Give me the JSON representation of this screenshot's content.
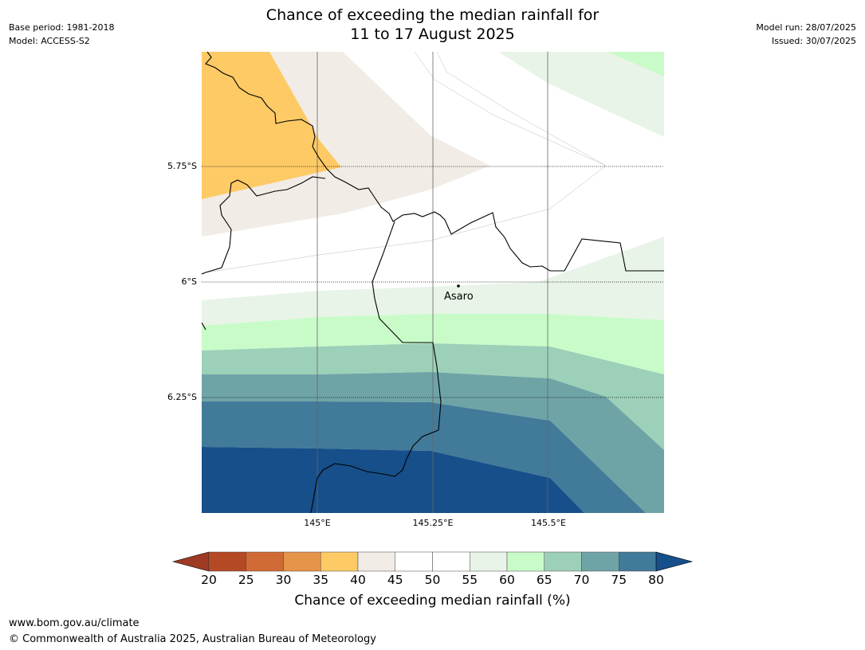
{
  "header": {
    "title_line1": "Chance of exceeding the median rainfall for",
    "title_line2": "11 to 17 August 2025",
    "base_period": "Base period: 1981-2018",
    "model": "Model: ACCESS-S2",
    "model_run": "Model run: 28/07/2025",
    "issued": "Issued: 30/07/2025"
  },
  "map": {
    "latitude_labels": [
      "5.75°S",
      "6°S",
      "6.25°S"
    ],
    "longitude_labels": [
      "145°E",
      "145.25°E",
      "145.5°E"
    ],
    "place_label": "Asaro"
  },
  "colorbar": {
    "ticks": [
      "20",
      "25",
      "30",
      "35",
      "40",
      "45",
      "50",
      "55",
      "60",
      "65",
      "70",
      "75",
      "80"
    ],
    "label": "Chance of exceeding median rainfall (%)",
    "colors": {
      "below_20": "#9e3a23",
      "20_25": "#b44a25",
      "25_30": "#d06a34",
      "30_35": "#e5944a",
      "35_40": "#fdca66",
      "40_45": "#f1ece6",
      "45_50": "#ffffff",
      "50_55": "#ffffff",
      "55_60": "#e8f4e8",
      "60_65": "#c9fbc9",
      "65_70": "#9dd0b8",
      "70_75": "#6fa4a7",
      "75_80": "#427a99",
      "above_80": "#164f8a"
    }
  },
  "footer": {
    "url": "www.bom.gov.au/climate",
    "copyright": "© Commonwealth of Australia 2025, Australian Bureau of Meteorology"
  }
}
